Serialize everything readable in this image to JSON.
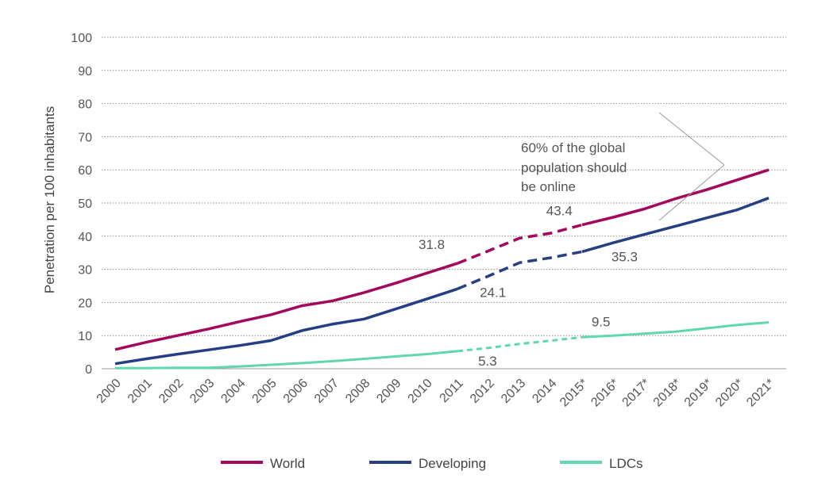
{
  "chart_data": {
    "type": "line",
    "title": "",
    "xlabel": "",
    "ylabel": "Penetration per 100 inhabitants",
    "ylim": [
      0,
      100
    ],
    "yticks": [
      0,
      10,
      20,
      30,
      40,
      50,
      60,
      70,
      80,
      90,
      100
    ],
    "grid": true,
    "legend_position": "bottom",
    "categories": [
      "2000",
      "2001",
      "2002",
      "2003",
      "2004",
      "2005",
      "2006",
      "2007",
      "2008",
      "2009",
      "2010",
      "2011",
      "2012",
      "2013",
      "2014",
      "2015*",
      "2016*",
      "2017*",
      "2018*",
      "2019*",
      "2020*",
      "2021*"
    ],
    "series": [
      {
        "name": "World",
        "color": "#a3085d",
        "values": [
          5.8,
          8.0,
          10.0,
          12.0,
          14.2,
          16.3,
          19.0,
          20.5,
          23.0,
          25.8,
          28.8,
          31.8,
          35.6,
          39.4,
          40.9,
          43.4,
          45.7,
          48.2,
          51.3,
          54.0,
          57.0,
          60.0
        ],
        "dashed_from": "2011",
        "dashed_to": "2015*"
      },
      {
        "name": "Developing",
        "color": "#253f85",
        "values": [
          1.5,
          3.0,
          4.4,
          5.7,
          7.0,
          8.5,
          11.5,
          13.5,
          15.0,
          18.0,
          21.0,
          24.1,
          28.0,
          32.0,
          33.5,
          35.3,
          38.0,
          40.5,
          43.0,
          45.5,
          48.0,
          51.5
        ],
        "dashed_from": "2011",
        "dashed_to": "2015*"
      },
      {
        "name": "LDCs",
        "color": "#5fd8ad",
        "values": [
          0.2,
          0.2,
          0.3,
          0.3,
          0.7,
          1.2,
          1.7,
          2.3,
          3.0,
          3.7,
          4.4,
          5.3,
          6.3,
          7.5,
          8.5,
          9.5,
          10.0,
          10.6,
          11.2,
          12.2,
          13.2,
          14.0
        ],
        "dashed_from": "2011",
        "dashed_to": "2015*"
      }
    ],
    "data_labels": [
      {
        "series": "World",
        "category": "2011",
        "text": "31.8"
      },
      {
        "series": "World",
        "category": "2015*",
        "text": "43.4"
      },
      {
        "series": "Developing",
        "category": "2011",
        "text": "24.1"
      },
      {
        "series": "Developing",
        "category": "2015*",
        "text": "35.3"
      },
      {
        "series": "LDCs",
        "category": "2011",
        "text": "5.3"
      },
      {
        "series": "LDCs",
        "category": "2015*",
        "text": "9.5"
      }
    ],
    "annotation": {
      "lines": [
        "60% of the global",
        "population should",
        "be online"
      ]
    }
  }
}
